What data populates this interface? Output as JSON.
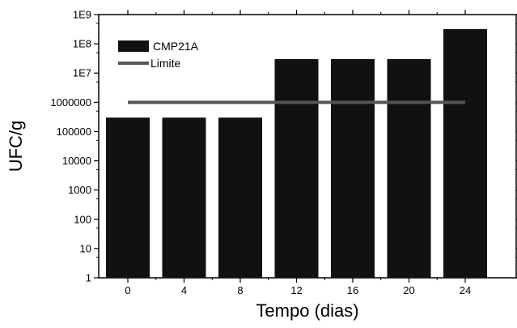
{
  "chart_data": {
    "type": "bar",
    "xlabel": "Tempo (dias)",
    "ylabel": "UFC/g",
    "y_scale": "log",
    "ylim": [
      1,
      1000000000
    ],
    "y_tick_labels": [
      "1",
      "10",
      "100",
      "1000",
      "10000",
      "100000",
      "1000000",
      "1E7",
      "1E8",
      "1E9"
    ],
    "categories": [
      "0",
      "4",
      "8",
      "12",
      "16",
      "20",
      "24"
    ],
    "series": [
      {
        "name": "CMP21A",
        "type": "bar",
        "color": "#111111",
        "values": [
          300000,
          300000,
          300000,
          30000000,
          30000000,
          30000000,
          320000000
        ]
      },
      {
        "name": "Limite",
        "type": "line",
        "color": "#555555",
        "values": [
          1000000,
          1000000,
          1000000,
          1000000,
          1000000,
          1000000,
          1000000
        ]
      }
    ],
    "legend_position": "top-left",
    "grid": false
  }
}
